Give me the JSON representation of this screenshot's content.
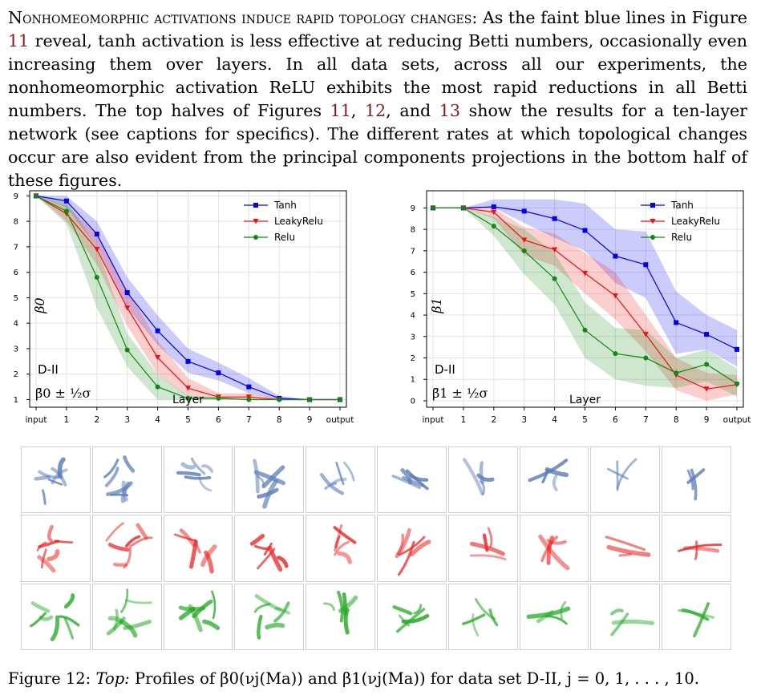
{
  "paragraph": {
    "heading": "Nonhomeomorphic activations induce rapid topology changes:",
    "s1": " As the faint blue lines in Figure ",
    "ref11a": "11",
    "s2": " reveal, tanh activation is less effective at reducing Betti numbers, occasionally even increasing them over layers. In all data sets, across all our experiments, the nonhomeomorphic activation ReLU exhibits the most rapid reductions in all Betti numbers. The top halves of Figures ",
    "ref11b": "11",
    "s3": ", ",
    "ref12": "12",
    "s4": ", and ",
    "ref13": "13",
    "s5": " show the results for a ten-layer network (see captions for specifics). The different rates at which topological changes occur are also evident from the principal components projections in the bottom half of these figures."
  },
  "colors": {
    "tanh": "#0000ee",
    "leaky": "#ee1111",
    "relu": "#118811",
    "ref": "#8b1a1a"
  },
  "chart_data": [
    {
      "type": "line",
      "x": [
        "input",
        "1",
        "2",
        "3",
        "4",
        "5",
        "6",
        "7",
        "8",
        "9",
        "output"
      ],
      "ylim": [
        0.7,
        9.2
      ],
      "yticks": [
        1,
        2,
        3,
        4,
        5,
        6,
        7,
        8,
        9
      ],
      "xlabel": "Layer",
      "ylabel": "β0",
      "legend": "top-right",
      "grid": true,
      "annotation_dataset": "D-II",
      "annotation_formula": "β̄0 ± ½σ",
      "series": [
        {
          "name": "Tanh",
          "marker": "square",
          "values": [
            9,
            8.8,
            7.5,
            5.2,
            3.7,
            2.5,
            2.05,
            1.5,
            1.05,
            1.0,
            1.0
          ],
          "band_lo": [
            9,
            8.55,
            7.0,
            4.6,
            3.15,
            2.05,
            1.75,
            1.25,
            1.0,
            1.0,
            1.0
          ],
          "band_hi": [
            9,
            9.0,
            8.0,
            5.8,
            4.3,
            3.0,
            2.45,
            1.85,
            1.15,
            1.0,
            1.0
          ]
        },
        {
          "name": "LeakyRelu",
          "marker": "triangle",
          "values": [
            9,
            8.3,
            6.9,
            4.6,
            2.65,
            1.45,
            1.1,
            1.1,
            1.0,
            1.0,
            1.0
          ],
          "band_lo": [
            9,
            8.0,
            6.3,
            3.9,
            2.0,
            1.1,
            1.0,
            1.0,
            1.0,
            1.0,
            1.0
          ],
          "band_hi": [
            9,
            8.6,
            7.5,
            5.3,
            3.3,
            1.85,
            1.25,
            1.25,
            1.05,
            1.0,
            1.0
          ]
        },
        {
          "name": "Relu",
          "marker": "circle",
          "values": [
            9,
            8.4,
            5.8,
            2.95,
            1.5,
            1.05,
            1.05,
            1.0,
            1.0,
            1.0,
            1.0
          ],
          "band_lo": [
            9,
            7.9,
            4.6,
            2.3,
            1.0,
            1.0,
            1.0,
            1.0,
            1.0,
            1.0,
            1.0
          ],
          "band_hi": [
            9,
            8.8,
            7.0,
            3.6,
            2.0,
            1.15,
            1.1,
            1.0,
            1.0,
            1.0,
            1.0
          ]
        }
      ]
    },
    {
      "type": "line",
      "x": [
        "input",
        "1",
        "2",
        "3",
        "4",
        "5",
        "6",
        "7",
        "8",
        "9",
        "output"
      ],
      "ylim": [
        -0.3,
        9.8
      ],
      "yticks": [
        0,
        1,
        2,
        3,
        4,
        5,
        6,
        7,
        8,
        9
      ],
      "xlabel": "Layer",
      "ylabel": "β1",
      "legend": "top-right",
      "grid": true,
      "annotation_dataset": "D-II",
      "annotation_formula": "β̄1 ± ½σ",
      "series": [
        {
          "name": "Tanh",
          "marker": "square",
          "values": [
            9,
            9,
            9.05,
            8.85,
            8.5,
            7.95,
            6.75,
            6.35,
            3.65,
            3.1,
            2.4
          ],
          "band_lo": [
            9,
            9,
            9.0,
            8.3,
            7.6,
            7.0,
            5.5,
            4.8,
            2.2,
            2.4,
            1.6
          ],
          "band_hi": [
            9,
            9,
            9.4,
            9.4,
            9.4,
            9.2,
            8.0,
            7.9,
            5.1,
            4.0,
            3.3
          ]
        },
        {
          "name": "LeakyRelu",
          "marker": "triangle",
          "values": [
            9,
            9,
            8.8,
            7.5,
            7.05,
            5.95,
            4.9,
            3.1,
            1.2,
            0.55,
            0.75
          ],
          "band_lo": [
            9,
            9,
            8.5,
            6.8,
            6.3,
            5.0,
            3.8,
            2.3,
            0.5,
            0.0,
            0.3
          ],
          "band_hi": [
            9,
            9,
            9.0,
            8.1,
            7.8,
            6.9,
            6.0,
            4.0,
            2.0,
            1.3,
            1.2
          ]
        },
        {
          "name": "Relu",
          "marker": "circle",
          "values": [
            9,
            9,
            8.15,
            7.0,
            5.7,
            3.3,
            2.2,
            2.0,
            1.3,
            1.7,
            0.8
          ],
          "band_lo": [
            9,
            9,
            7.7,
            5.9,
            4.5,
            2.0,
            1.0,
            0.7,
            0.6,
            0.9,
            0.2
          ],
          "band_hi": [
            9,
            9,
            8.6,
            8.0,
            6.9,
            4.6,
            3.4,
            3.3,
            2.0,
            2.4,
            1.5
          ]
        }
      ]
    }
  ],
  "thumbnails": {
    "columns": 10,
    "rows": [
      {
        "name": "tanh",
        "color": "#5b7db8"
      },
      {
        "name": "leaky",
        "color": "#ee2222"
      },
      {
        "name": "relu",
        "color": "#22aa22"
      }
    ]
  },
  "caption": {
    "label": "Figure 12:",
    "top": "Top:",
    "text": " Profiles of β0(νj(Ma)) and β1(νj(Ma)) for data set D-II, j = 0, 1, . . . , 10."
  }
}
